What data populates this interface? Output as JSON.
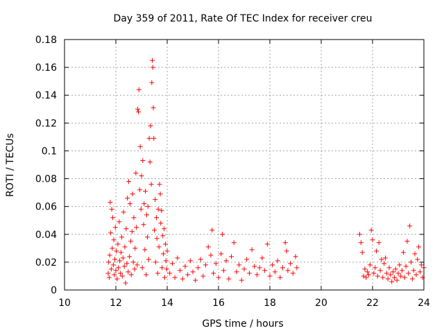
{
  "chart_data": {
    "type": "scatter",
    "title": "Day 359 of 2011, Rate Of TEC Index for receiver creu",
    "xlabel": "GPS time / hours",
    "ylabel": "ROTI / TECUs",
    "xlim": [
      10,
      24
    ],
    "ylim": [
      0,
      0.18
    ],
    "x_ticks": [
      "10",
      "12",
      "14",
      "16",
      "18",
      "20",
      "22",
      "24"
    ],
    "y_ticks": [
      "0",
      "0.02",
      "0.04",
      "0.06",
      "0.08",
      "0.1",
      "0.12",
      "0.14",
      "0.16",
      "0.18"
    ],
    "grid": true,
    "marker": "+",
    "color": "#ff0000",
    "series": [
      {
        "values": [
          [
            11.7,
            0.012
          ],
          [
            11.72,
            0.02
          ],
          [
            11.74,
            0.009
          ],
          [
            11.76,
            0.025
          ],
          [
            11.78,
            0.063
          ],
          [
            11.8,
            0.041
          ],
          [
            11.82,
            0.015
          ],
          [
            11.84,
            0.058
          ],
          [
            11.86,
            0.03
          ],
          [
            11.88,
            0.052
          ],
          [
            11.9,
            0.018
          ],
          [
            11.92,
            0.036
          ],
          [
            11.94,
            0.011
          ],
          [
            11.96,
            0.022
          ],
          [
            11.98,
            0.045
          ],
          [
            12.0,
            0.014
          ],
          [
            12.02,
            0.028
          ],
          [
            12.05,
            0.008
          ],
          [
            12.08,
            0.033
          ],
          [
            12.1,
            0.016
          ],
          [
            12.13,
            0.049
          ],
          [
            12.15,
            0.021
          ],
          [
            12.18,
            0.012
          ],
          [
            12.2,
            0.027
          ],
          [
            12.23,
            0.038
          ],
          [
            12.25,
            0.01
          ],
          [
            12.28,
            0.023
          ],
          [
            12.3,
            0.056
          ],
          [
            12.33,
            0.017
          ],
          [
            12.35,
            0.031
          ],
          [
            12.38,
            0.005
          ],
          [
            12.4,
            0.044
          ],
          [
            12.43,
            0.019
          ],
          [
            12.45,
            0.066
          ],
          [
            12.48,
            0.013
          ],
          [
            12.5,
            0.078
          ],
          [
            12.53,
            0.024
          ],
          [
            12.55,
            0.062
          ],
          [
            12.58,
            0.035
          ],
          [
            12.6,
            0.011
          ],
          [
            12.63,
            0.042
          ],
          [
            12.65,
            0.069
          ],
          [
            12.68,
            0.02
          ],
          [
            12.7,
            0.052
          ],
          [
            12.73,
            0.015
          ],
          [
            12.75,
            0.03
          ],
          [
            12.78,
            0.084
          ],
          [
            12.8,
            0.045
          ],
          [
            12.83,
            0.018
          ],
          [
            12.85,
            0.13
          ],
          [
            12.88,
            0.128
          ],
          [
            12.9,
            0.144
          ],
          [
            12.93,
            0.072
          ],
          [
            12.95,
            0.103
          ],
          [
            12.98,
            0.058
          ],
          [
            13.0,
            0.082
          ],
          [
            13.03,
            0.016
          ],
          [
            13.05,
            0.093
          ],
          [
            13.08,
            0.047
          ],
          [
            13.1,
            0.062
          ],
          [
            13.13,
            0.029
          ],
          [
            13.15,
            0.071
          ],
          [
            13.18,
            0.011
          ],
          [
            13.2,
            0.054
          ],
          [
            13.23,
            0.038
          ],
          [
            13.25,
            0.06
          ],
          [
            13.28,
            0.022
          ],
          [
            13.3,
            0.109
          ],
          [
            13.33,
            0.092
          ],
          [
            13.35,
            0.118
          ],
          [
            13.38,
            0.076
          ],
          [
            13.4,
            0.149
          ],
          [
            13.42,
            0.165
          ],
          [
            13.44,
            0.16
          ],
          [
            13.46,
            0.131
          ],
          [
            13.48,
            0.109
          ],
          [
            13.5,
            0.043
          ],
          [
            13.53,
            0.065
          ],
          [
            13.55,
            0.02
          ],
          [
            13.58,
            0.052
          ],
          [
            13.6,
            0.037
          ],
          [
            13.63,
            0.012
          ],
          [
            13.65,
            0.058
          ],
          [
            13.68,
            0.031
          ],
          [
            13.7,
            0.076
          ],
          [
            13.73,
            0.069
          ],
          [
            13.75,
            0.048
          ],
          [
            13.78,
            0.057
          ],
          [
            13.8,
            0.016
          ],
          [
            13.83,
            0.039
          ],
          [
            13.85,
            0.026
          ],
          [
            13.88,
            0.044
          ],
          [
            13.9,
            0.009
          ],
          [
            13.93,
            0.033
          ],
          [
            13.95,
            0.021
          ],
          [
            13.98,
            0.015
          ],
          [
            14.0,
            0.028
          ],
          [
            14.1,
            0.012
          ],
          [
            14.2,
            0.019
          ],
          [
            14.3,
            0.009
          ],
          [
            14.4,
            0.023
          ],
          [
            14.5,
            0.014
          ],
          [
            14.6,
            0.008
          ],
          [
            14.7,
            0.017
          ],
          [
            14.8,
            0.011
          ],
          [
            14.9,
            0.021
          ],
          [
            15.0,
            0.013
          ],
          [
            15.1,
            0.007
          ],
          [
            15.2,
            0.016
          ],
          [
            15.3,
            0.022
          ],
          [
            15.4,
            0.01
          ],
          [
            15.5,
            0.018
          ],
          [
            15.6,
            0.031
          ],
          [
            15.7,
            0.025
          ],
          [
            15.75,
            0.043
          ],
          [
            15.8,
            0.012
          ],
          [
            15.9,
            0.019
          ],
          [
            16.0,
            0.009
          ],
          [
            16.1,
            0.026
          ],
          [
            16.15,
            0.04
          ],
          [
            16.2,
            0.014
          ],
          [
            16.3,
            0.021
          ],
          [
            16.4,
            0.008
          ],
          [
            16.5,
            0.024
          ],
          [
            16.6,
            0.034
          ],
          [
            16.7,
            0.013
          ],
          [
            16.8,
            0.018
          ],
          [
            16.9,
            0.007
          ],
          [
            17.0,
            0.015
          ],
          [
            17.1,
            0.022
          ],
          [
            17.2,
            0.012
          ],
          [
            17.3,
            0.029
          ],
          [
            17.4,
            0.017
          ],
          [
            17.5,
            0.011
          ],
          [
            17.6,
            0.016
          ],
          [
            17.7,
            0.023
          ],
          [
            17.8,
            0.014
          ],
          [
            17.9,
            0.033
          ],
          [
            18.0,
            0.01
          ],
          [
            18.1,
            0.018
          ],
          [
            18.2,
            0.013
          ],
          [
            18.3,
            0.021
          ],
          [
            18.4,
            0.009
          ],
          [
            18.5,
            0.016
          ],
          [
            18.6,
            0.034
          ],
          [
            18.65,
            0.028
          ],
          [
            18.7,
            0.014
          ],
          [
            18.8,
            0.019
          ],
          [
            18.9,
            0.012
          ],
          [
            19.0,
            0.024
          ],
          [
            19.05,
            0.016
          ],
          [
            21.5,
            0.04
          ],
          [
            21.55,
            0.034
          ],
          [
            21.6,
            0.027
          ],
          [
            21.65,
            0.01
          ],
          [
            21.7,
            0.015
          ],
          [
            21.75,
            0.009
          ],
          [
            21.8,
            0.013
          ],
          [
            21.85,
            0.011
          ],
          [
            21.9,
            0.018
          ],
          [
            21.95,
            0.043
          ],
          [
            22.0,
            0.036
          ],
          [
            22.05,
            0.012
          ],
          [
            22.1,
            0.016
          ],
          [
            22.15,
            0.028
          ],
          [
            22.2,
            0.01
          ],
          [
            22.25,
            0.034
          ],
          [
            22.3,
            0.014
          ],
          [
            22.35,
            0.022
          ],
          [
            22.4,
            0.009
          ],
          [
            22.45,
            0.019
          ],
          [
            22.5,
            0.023
          ],
          [
            22.55,
            0.012
          ],
          [
            22.6,
            0.008
          ],
          [
            22.65,
            0.016
          ],
          [
            22.7,
            0.011
          ],
          [
            22.75,
            0.006
          ],
          [
            22.8,
            0.013
          ],
          [
            22.85,
            0.009
          ],
          [
            22.9,
            0.015
          ],
          [
            22.95,
            0.007
          ],
          [
            23.0,
            0.012
          ],
          [
            23.05,
            0.018
          ],
          [
            23.1,
            0.01
          ],
          [
            23.15,
            0.014
          ],
          [
            23.2,
            0.027
          ],
          [
            23.25,
            0.009
          ],
          [
            23.3,
            0.017
          ],
          [
            23.35,
            0.035
          ],
          [
            23.4,
            0.012
          ],
          [
            23.45,
            0.046
          ],
          [
            23.5,
            0.02
          ],
          [
            23.55,
            0.008
          ],
          [
            23.6,
            0.014
          ],
          [
            23.65,
            0.026
          ],
          [
            23.7,
            0.011
          ],
          [
            23.75,
            0.022
          ],
          [
            23.8,
            0.031
          ],
          [
            23.85,
            0.013
          ],
          [
            23.9,
            0.018
          ],
          [
            23.95,
            0.009
          ],
          [
            24.0,
            0.016
          ]
        ]
      }
    ]
  }
}
